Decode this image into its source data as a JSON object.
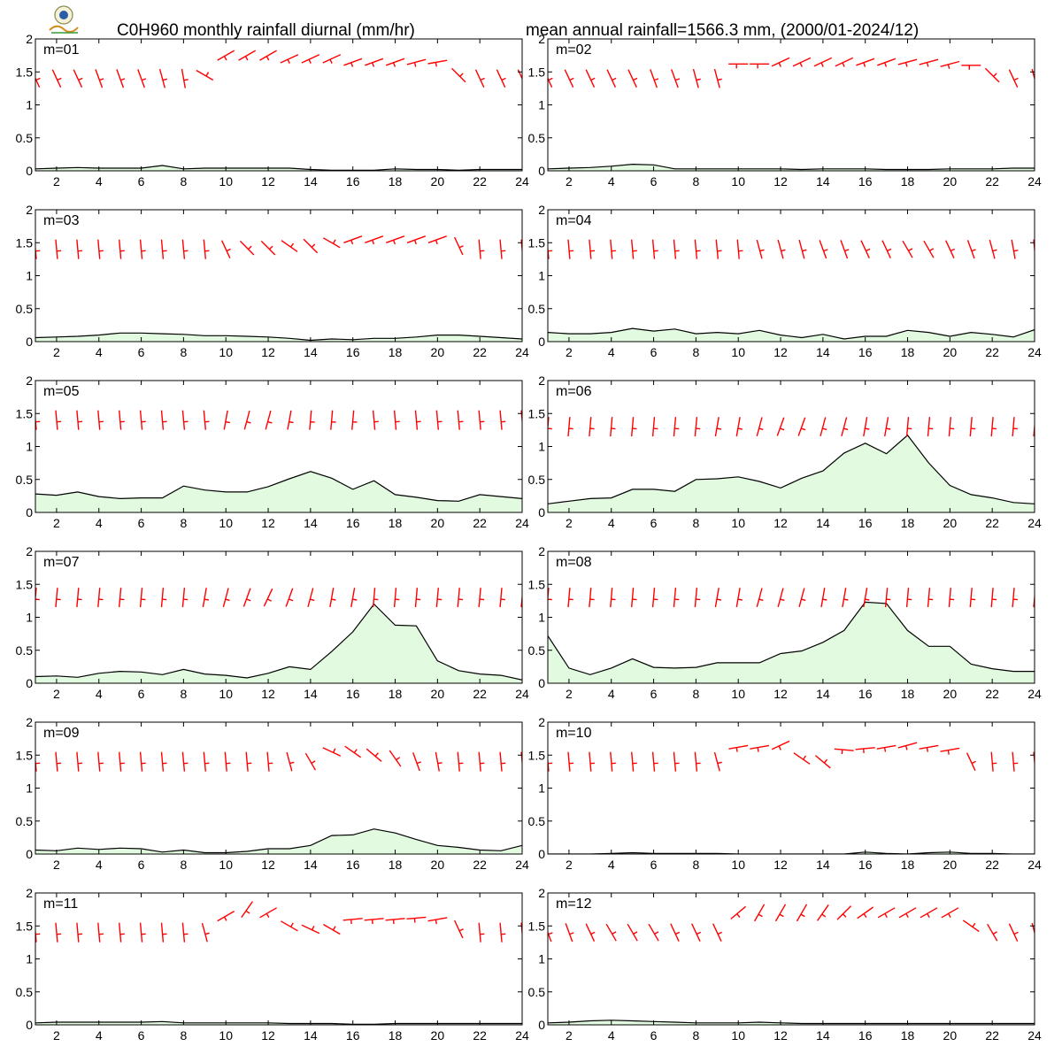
{
  "header": {
    "title_left": "C0H960 monthly rainfall diurnal (mm/hr)",
    "title_right": "mean annual rainfall=1566.3 mm, (2000/01-2024/12)",
    "logo_icon": "station-logo-icon"
  },
  "colors": {
    "rain_fill": "#e2fbe0",
    "rain_line": "#000000",
    "wind_barb": "#ff0000",
    "frame": "#000000"
  },
  "chart_data": {
    "type": "area",
    "x": [
      1,
      2,
      3,
      4,
      5,
      6,
      7,
      8,
      9,
      10,
      11,
      12,
      13,
      14,
      15,
      16,
      17,
      18,
      19,
      20,
      21,
      22,
      23,
      24
    ],
    "xticks": [
      2,
      4,
      6,
      8,
      10,
      12,
      14,
      16,
      18,
      20,
      22,
      24
    ],
    "yticks": [
      0,
      0.5,
      1,
      1.5,
      2
    ],
    "ytick_labels": [
      "0",
      "0.5",
      "1",
      "1.5",
      "2"
    ],
    "xlim": [
      1,
      24
    ],
    "ylim": [
      0,
      2
    ],
    "panels": [
      {
        "label": "m=01",
        "rain": [
          0.03,
          0.04,
          0.05,
          0.04,
          0.04,
          0.04,
          0.08,
          0.03,
          0.04,
          0.04,
          0.04,
          0.04,
          0.04,
          0.02,
          0.01,
          0.01,
          0.01,
          0.03,
          0.02,
          0.02,
          0.01,
          0.02,
          0.02,
          0.02
        ],
        "wind_dir": [
          335,
          335,
          335,
          340,
          340,
          340,
          345,
          350,
          300,
          60,
          60,
          60,
          65,
          65,
          65,
          70,
          70,
          70,
          75,
          80,
          315,
          335,
          335,
          335
        ],
        "wind_level": [
          1.4,
          1.4,
          1.4,
          1.4,
          1.4,
          1.4,
          1.4,
          1.4,
          1.45,
          1.75,
          1.75,
          1.75,
          1.7,
          1.7,
          1.7,
          1.65,
          1.65,
          1.65,
          1.65,
          1.65,
          1.45,
          1.4,
          1.4,
          1.4
        ]
      },
      {
        "label": "m=02",
        "rain": [
          0.03,
          0.04,
          0.05,
          0.07,
          0.1,
          0.09,
          0.03,
          0.03,
          0.03,
          0.03,
          0.03,
          0.03,
          0.02,
          0.03,
          0.03,
          0.03,
          0.02,
          0.02,
          0.02,
          0.03,
          0.03,
          0.03,
          0.04,
          0.04
        ],
        "wind_dir": [
          335,
          335,
          335,
          335,
          335,
          340,
          340,
          345,
          345,
          90,
          90,
          65,
          65,
          65,
          65,
          70,
          70,
          75,
          75,
          75,
          90,
          315,
          335,
          345
        ],
        "wind_level": [
          1.4,
          1.4,
          1.4,
          1.4,
          1.4,
          1.4,
          1.4,
          1.4,
          1.4,
          1.62,
          1.62,
          1.65,
          1.65,
          1.65,
          1.65,
          1.65,
          1.65,
          1.65,
          1.65,
          1.62,
          1.6,
          1.45,
          1.4,
          1.4
        ]
      },
      {
        "label": "m=03",
        "rain": [
          0.06,
          0.07,
          0.08,
          0.1,
          0.13,
          0.13,
          0.12,
          0.11,
          0.09,
          0.09,
          0.08,
          0.07,
          0.05,
          0.02,
          0.04,
          0.03,
          0.05,
          0.05,
          0.07,
          0.1,
          0.1,
          0.08,
          0.06,
          0.04
        ],
        "wind_dir": [
          355,
          355,
          355,
          355,
          355,
          355,
          355,
          355,
          355,
          335,
          315,
          315,
          305,
          315,
          300,
          70,
          70,
          70,
          70,
          70,
          335,
          355,
          355,
          355
        ],
        "wind_level": [
          1.4,
          1.4,
          1.4,
          1.4,
          1.4,
          1.4,
          1.4,
          1.4,
          1.4,
          1.4,
          1.42,
          1.42,
          1.45,
          1.45,
          1.5,
          1.55,
          1.55,
          1.55,
          1.55,
          1.55,
          1.45,
          1.4,
          1.4,
          1.4
        ]
      },
      {
        "label": "m=04",
        "rain": [
          0.14,
          0.12,
          0.12,
          0.14,
          0.2,
          0.16,
          0.19,
          0.12,
          0.14,
          0.12,
          0.17,
          0.1,
          0.06,
          0.11,
          0.04,
          0.08,
          0.08,
          0.17,
          0.14,
          0.08,
          0.14,
          0.11,
          0.07,
          0.18
        ],
        "wind_dir": [
          355,
          355,
          355,
          355,
          355,
          355,
          355,
          355,
          355,
          355,
          345,
          345,
          345,
          340,
          340,
          335,
          335,
          330,
          330,
          335,
          340,
          345,
          350,
          355
        ],
        "wind_level": [
          1.4,
          1.4,
          1.4,
          1.4,
          1.4,
          1.4,
          1.4,
          1.4,
          1.4,
          1.4,
          1.4,
          1.4,
          1.4,
          1.4,
          1.4,
          1.4,
          1.4,
          1.4,
          1.4,
          1.4,
          1.4,
          1.4,
          1.4,
          1.4
        ]
      },
      {
        "label": "m=05",
        "rain": [
          0.28,
          0.26,
          0.31,
          0.24,
          0.21,
          0.22,
          0.22,
          0.4,
          0.34,
          0.31,
          0.31,
          0.39,
          0.51,
          0.62,
          0.52,
          0.35,
          0.48,
          0.27,
          0.23,
          0.18,
          0.17,
          0.27,
          0.24,
          0.21
        ],
        "wind_dir": [
          355,
          355,
          355,
          355,
          355,
          355,
          355,
          355,
          355,
          10,
          15,
          15,
          10,
          5,
          5,
          5,
          355,
          355,
          355,
          355,
          355,
          355,
          355,
          355
        ],
        "wind_level": [
          1.4,
          1.4,
          1.4,
          1.4,
          1.4,
          1.4,
          1.4,
          1.4,
          1.4,
          1.4,
          1.4,
          1.4,
          1.4,
          1.4,
          1.4,
          1.4,
          1.4,
          1.4,
          1.4,
          1.4,
          1.4,
          1.4,
          1.4,
          1.4
        ]
      },
      {
        "label": "m=06",
        "rain": [
          0.13,
          0.17,
          0.21,
          0.22,
          0.35,
          0.35,
          0.32,
          0.5,
          0.51,
          0.54,
          0.47,
          0.37,
          0.52,
          0.63,
          0.9,
          1.05,
          0.89,
          1.17,
          0.75,
          0.41,
          0.27,
          0.22,
          0.15,
          0.13
        ],
        "wind_dir": [
          5,
          5,
          5,
          5,
          5,
          5,
          5,
          5,
          10,
          10,
          15,
          20,
          20,
          15,
          15,
          10,
          10,
          5,
          5,
          5,
          5,
          5,
          5,
          5
        ],
        "wind_level": [
          1.3,
          1.3,
          1.3,
          1.3,
          1.3,
          1.3,
          1.3,
          1.3,
          1.3,
          1.3,
          1.3,
          1.3,
          1.3,
          1.3,
          1.3,
          1.3,
          1.3,
          1.3,
          1.3,
          1.3,
          1.3,
          1.3,
          1.3,
          1.3
        ]
      },
      {
        "label": "m=07",
        "rain": [
          0.1,
          0.11,
          0.09,
          0.15,
          0.18,
          0.17,
          0.13,
          0.21,
          0.14,
          0.12,
          0.08,
          0.15,
          0.25,
          0.21,
          0.48,
          0.78,
          1.2,
          0.88,
          0.87,
          0.34,
          0.19,
          0.14,
          0.12,
          0.05
        ],
        "wind_dir": [
          5,
          5,
          5,
          5,
          5,
          5,
          5,
          5,
          10,
          15,
          20,
          25,
          20,
          15,
          10,
          10,
          5,
          5,
          5,
          5,
          5,
          5,
          5,
          5
        ],
        "wind_level": [
          1.3,
          1.3,
          1.3,
          1.3,
          1.3,
          1.3,
          1.3,
          1.3,
          1.3,
          1.3,
          1.3,
          1.3,
          1.3,
          1.3,
          1.3,
          1.3,
          1.3,
          1.3,
          1.3,
          1.3,
          1.3,
          1.3,
          1.3,
          1.3
        ]
      },
      {
        "label": "m=08",
        "rain": [
          0.72,
          0.23,
          0.13,
          0.23,
          0.37,
          0.24,
          0.23,
          0.24,
          0.31,
          0.31,
          0.31,
          0.45,
          0.49,
          0.62,
          0.8,
          1.23,
          1.21,
          0.8,
          0.56,
          0.56,
          0.29,
          0.22,
          0.18,
          0.18
        ],
        "wind_dir": [
          5,
          5,
          5,
          5,
          5,
          5,
          5,
          5,
          10,
          10,
          15,
          15,
          15,
          10,
          10,
          10,
          5,
          5,
          5,
          5,
          5,
          5,
          5,
          5
        ],
        "wind_level": [
          1.3,
          1.3,
          1.3,
          1.3,
          1.3,
          1.3,
          1.3,
          1.3,
          1.3,
          1.3,
          1.3,
          1.3,
          1.3,
          1.3,
          1.3,
          1.3,
          1.3,
          1.3,
          1.3,
          1.3,
          1.3,
          1.3,
          1.3,
          1.3
        ]
      },
      {
        "label": "m=09",
        "rain": [
          0.06,
          0.05,
          0.09,
          0.07,
          0.09,
          0.08,
          0.03,
          0.06,
          0.02,
          0.02,
          0.04,
          0.08,
          0.08,
          0.13,
          0.28,
          0.29,
          0.38,
          0.32,
          0.22,
          0.13,
          0.1,
          0.06,
          0.05,
          0.13
        ],
        "wind_dir": [
          355,
          355,
          355,
          355,
          355,
          355,
          355,
          355,
          355,
          355,
          355,
          355,
          345,
          330,
          295,
          305,
          310,
          325,
          340,
          350,
          355,
          355,
          355,
          355
        ],
        "wind_level": [
          1.4,
          1.4,
          1.4,
          1.4,
          1.4,
          1.4,
          1.4,
          1.4,
          1.4,
          1.4,
          1.4,
          1.4,
          1.4,
          1.4,
          1.55,
          1.55,
          1.5,
          1.45,
          1.4,
          1.4,
          1.4,
          1.4,
          1.4,
          1.4
        ]
      },
      {
        "label": "m=10",
        "rain": [
          0.0,
          0.0,
          0.0,
          0.01,
          0.02,
          0.01,
          0.01,
          0.01,
          0.01,
          0.0,
          0.0,
          0.0,
          0.0,
          0.0,
          0.0,
          0.03,
          0.01,
          0.0,
          0.02,
          0.03,
          0.01,
          0.01,
          0.0,
          0.0
        ],
        "wind_dir": [
          355,
          355,
          355,
          355,
          355,
          355,
          355,
          355,
          345,
          80,
          80,
          65,
          305,
          310,
          95,
          85,
          80,
          75,
          80,
          80,
          335,
          355,
          355,
          355
        ],
        "wind_level": [
          1.4,
          1.4,
          1.4,
          1.4,
          1.4,
          1.4,
          1.4,
          1.4,
          1.4,
          1.62,
          1.62,
          1.65,
          1.45,
          1.4,
          1.58,
          1.6,
          1.62,
          1.65,
          1.62,
          1.58,
          1.4,
          1.4,
          1.4,
          1.4
        ]
      },
      {
        "label": "m=11",
        "rain": [
          0.03,
          0.04,
          0.04,
          0.04,
          0.04,
          0.04,
          0.05,
          0.03,
          0.03,
          0.03,
          0.03,
          0.03,
          0.02,
          0.02,
          0.02,
          0.01,
          0.01,
          0.02,
          0.02,
          0.02,
          0.02,
          0.02,
          0.02,
          0.02
        ],
        "wind_dir": [
          355,
          355,
          355,
          355,
          355,
          355,
          355,
          355,
          345,
          60,
          35,
          60,
          300,
          295,
          300,
          85,
          85,
          85,
          85,
          80,
          335,
          355,
          355,
          355
        ],
        "wind_level": [
          1.4,
          1.4,
          1.4,
          1.4,
          1.4,
          1.4,
          1.4,
          1.4,
          1.4,
          1.65,
          1.75,
          1.7,
          1.5,
          1.45,
          1.45,
          1.6,
          1.6,
          1.6,
          1.62,
          1.6,
          1.45,
          1.4,
          1.4,
          1.4
        ]
      },
      {
        "label": "m=12",
        "rain": [
          0.03,
          0.04,
          0.06,
          0.07,
          0.06,
          0.05,
          0.04,
          0.03,
          0.03,
          0.03,
          0.04,
          0.03,
          0.02,
          0.02,
          0.02,
          0.02,
          0.02,
          0.02,
          0.02,
          0.02,
          0.02,
          0.02,
          0.02,
          0.02
        ],
        "wind_dir": [
          340,
          340,
          335,
          330,
          330,
          330,
          335,
          335,
          335,
          50,
          30,
          30,
          30,
          35,
          45,
          55,
          60,
          60,
          60,
          60,
          305,
          330,
          335,
          345
        ],
        "wind_level": [
          1.4,
          1.4,
          1.4,
          1.4,
          1.4,
          1.4,
          1.4,
          1.4,
          1.4,
          1.7,
          1.7,
          1.7,
          1.7,
          1.7,
          1.7,
          1.7,
          1.7,
          1.7,
          1.7,
          1.7,
          1.5,
          1.4,
          1.4,
          1.4
        ]
      }
    ]
  }
}
